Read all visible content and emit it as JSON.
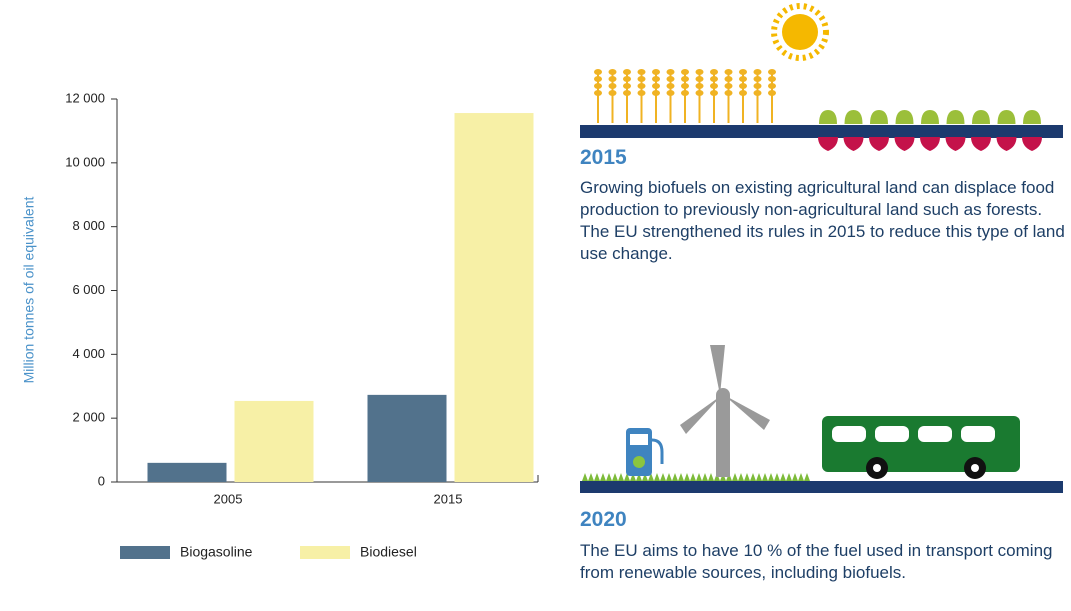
{
  "chart_data": {
    "type": "bar",
    "y_label": "Million tonnes of oil equivalent",
    "categories": [
      "2005",
      "2015"
    ],
    "series": [
      {
        "name": "Biogasoline",
        "color": "#52728c",
        "values": [
          600,
          2730
        ]
      },
      {
        "name": "Biodiesel",
        "color": "#f7f0a6",
        "values": [
          2540,
          11560
        ]
      }
    ],
    "ylim": [
      0,
      12000
    ],
    "yticks": [
      0,
      {
        "value": 2000,
        "label": "2 000"
      },
      {
        "value": 4000,
        "label": "4 000"
      },
      {
        "value": 6000,
        "label": "6 000"
      },
      {
        "value": 8000,
        "label": "8 000"
      },
      {
        "value": 10000,
        "label": "10 000"
      },
      {
        "value": 12000,
        "label": "12 000"
      }
    ],
    "grid": false
  },
  "panels": [
    {
      "year": "2015",
      "text": "Growing biofuels on existing agricultural land can displace food production to previously non-agricultural land such as forests. The EU strengthened its rules in 2015 to reduce this type of land use change."
    },
    {
      "year": "2020",
      "text": "The EU aims to have 10 % of the fuel used in transport coming from renewable sources, including biofuels."
    }
  ]
}
